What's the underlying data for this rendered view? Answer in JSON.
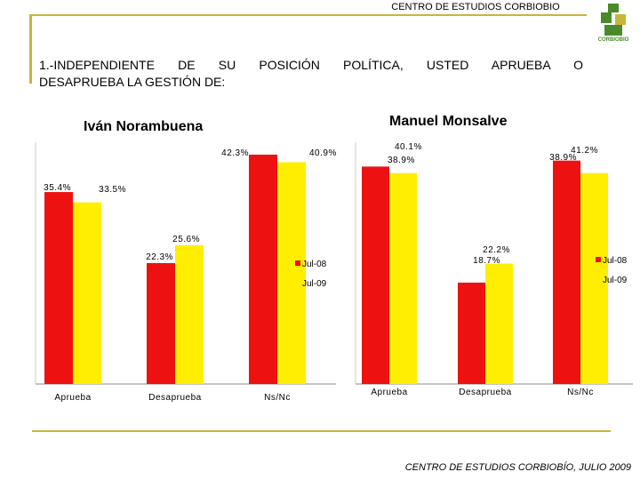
{
  "header": {
    "title": "CENTRO DE ESTUDIOS CORBIOBIO",
    "logo_text": "CORBIOBIO"
  },
  "question": {
    "line1": "1.-INDEPENDIENTE DE SU POSICIÓN POLÍTICA, USTED APRUEBA O",
    "line2": "DESAPRUEBA LA GESTIÓN DE:"
  },
  "colors": {
    "jul08": "#ee1111",
    "jul09": "#ffee00",
    "accent": "#c9b53a"
  },
  "chart_data": [
    {
      "type": "bar",
      "title": "Iván Norambuena",
      "categories": [
        "Aprueba",
        "Desaprueba",
        "Ns/Nc"
      ],
      "series": [
        {
          "name": "Jul-08",
          "values": [
            35.4,
            22.3,
            42.3
          ],
          "labels": [
            "35.4%",
            "22.3%",
            "42.3%"
          ]
        },
        {
          "name": "Jul-09",
          "values": [
            33.5,
            25.6,
            40.9
          ],
          "labels": [
            "33.5%",
            "25.6%",
            "40.9%"
          ]
        }
      ],
      "ylim": [
        0,
        50
      ],
      "legend": [
        "Jul-08",
        "Jul-09"
      ]
    },
    {
      "type": "bar",
      "title": "Manuel Monsalve",
      "categories": [
        "Aprueba",
        "Desaprueba",
        "Ns/Nc"
      ],
      "series": [
        {
          "name": "Jul-08",
          "values": [
            40.1,
            18.7,
            41.2
          ],
          "labels": [
            "40.1%",
            "18.7%",
            "41.2%"
          ]
        },
        {
          "name": "Jul-09",
          "values": [
            38.9,
            22.2,
            38.9
          ],
          "labels": [
            "38.9%",
            "22.2%",
            "38.9%"
          ]
        }
      ],
      "ylim": [
        0,
        50
      ],
      "legend": [
        "Jul-08",
        "Jul-09"
      ]
    }
  ],
  "footer": "CENTRO DE ESTUDIOS CORBIOBÍO, JULIO 2009"
}
